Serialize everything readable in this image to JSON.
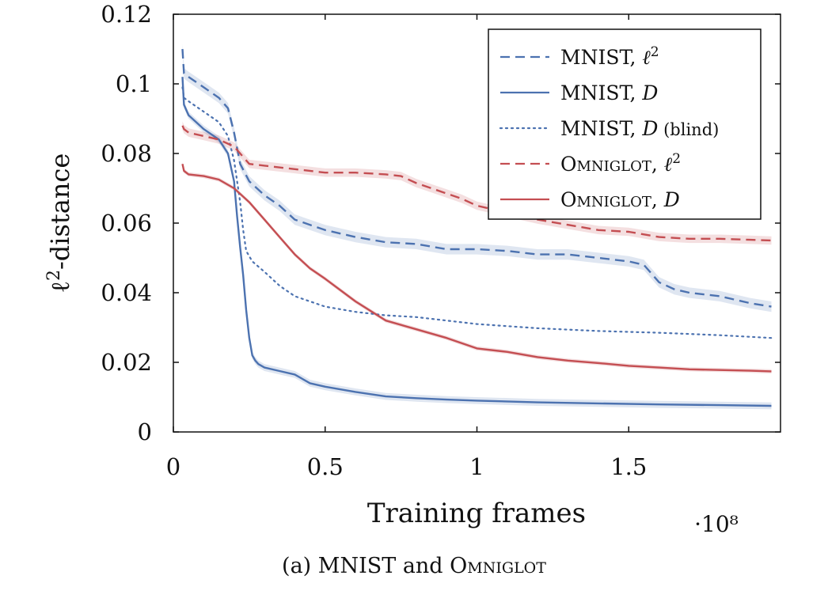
{
  "chart_data": {
    "type": "line",
    "title": "",
    "xlabel": "Training frames",
    "x_multiplier": "·10⁸",
    "ylabel": "ℓ²-distance",
    "xlim": [
      0,
      2.0
    ],
    "ylim": [
      0,
      0.12
    ],
    "xticks": [
      "0",
      "0.5",
      "1",
      "1.5"
    ],
    "xtick_values": [
      0,
      0.5,
      1,
      1.5
    ],
    "yticks": [
      "0",
      "0.02",
      "0.04",
      "0.06",
      "0.08",
      "0.1",
      "0.12"
    ],
    "ytick_values": [
      0,
      0.02,
      0.04,
      0.06,
      0.08,
      0.1,
      0.12
    ],
    "grid": false,
    "legend_position": "top-right",
    "series": [
      {
        "name": "MNIST, ℓ²",
        "color": "#4c72b0",
        "style": "dashed",
        "x": [
          0.03,
          0.035,
          0.05,
          0.1,
          0.15,
          0.18,
          0.2,
          0.22,
          0.25,
          0.3,
          0.35,
          0.4,
          0.5,
          0.6,
          0.7,
          0.8,
          0.9,
          1.0,
          1.1,
          1.2,
          1.3,
          1.4,
          1.5,
          1.55,
          1.6,
          1.65,
          1.7,
          1.8,
          1.9,
          1.97
        ],
        "y": [
          0.11,
          0.103,
          0.102,
          0.099,
          0.096,
          0.093,
          0.086,
          0.077,
          0.072,
          0.068,
          0.065,
          0.061,
          0.058,
          0.056,
          0.0545,
          0.054,
          0.0525,
          0.0525,
          0.052,
          0.051,
          0.051,
          0.05,
          0.049,
          0.048,
          0.043,
          0.041,
          0.04,
          0.039,
          0.037,
          0.036
        ],
        "band": 0.0015
      },
      {
        "name": "MNIST, D",
        "color": "#4c72b0",
        "style": "solid",
        "x": [
          0.03,
          0.035,
          0.05,
          0.1,
          0.15,
          0.18,
          0.2,
          0.21,
          0.22,
          0.23,
          0.24,
          0.25,
          0.26,
          0.27,
          0.28,
          0.3,
          0.35,
          0.4,
          0.45,
          0.5,
          0.6,
          0.7,
          0.8,
          0.9,
          1.0,
          1.2,
          1.4,
          1.6,
          1.8,
          1.97
        ],
        "y": [
          0.102,
          0.094,
          0.091,
          0.087,
          0.084,
          0.08,
          0.072,
          0.062,
          0.053,
          0.045,
          0.035,
          0.027,
          0.022,
          0.0205,
          0.0195,
          0.0185,
          0.0175,
          0.0165,
          0.014,
          0.013,
          0.0115,
          0.0102,
          0.0097,
          0.0093,
          0.009,
          0.0085,
          0.0082,
          0.0079,
          0.0077,
          0.0075
        ],
        "band": 0.001
      },
      {
        "name": "MNIST, D (blind)",
        "color": "#4c72b0",
        "style": "dotted",
        "x": [
          0.03,
          0.035,
          0.05,
          0.1,
          0.15,
          0.18,
          0.2,
          0.22,
          0.23,
          0.24,
          0.26,
          0.3,
          0.35,
          0.4,
          0.45,
          0.5,
          0.6,
          0.7,
          0.8,
          0.9,
          1.0,
          1.2,
          1.4,
          1.6,
          1.8,
          1.97
        ],
        "y": [
          0.099,
          0.096,
          0.095,
          0.092,
          0.089,
          0.085,
          0.078,
          0.066,
          0.058,
          0.052,
          0.049,
          0.046,
          0.042,
          0.039,
          0.0375,
          0.036,
          0.0345,
          0.0335,
          0.033,
          0.032,
          0.031,
          0.0298,
          0.029,
          0.0285,
          0.0278,
          0.027
        ],
        "band": 0
      },
      {
        "name": "OMNIGLOT, ℓ²",
        "color": "#c44e52",
        "style": "dashed",
        "x": [
          0.03,
          0.035,
          0.05,
          0.1,
          0.15,
          0.2,
          0.25,
          0.3,
          0.4,
          0.5,
          0.6,
          0.7,
          0.75,
          0.8,
          0.85,
          0.9,
          0.95,
          1.0,
          1.1,
          1.2,
          1.3,
          1.4,
          1.5,
          1.6,
          1.7,
          1.8,
          1.9,
          1.97
        ],
        "y": [
          0.088,
          0.087,
          0.086,
          0.085,
          0.084,
          0.082,
          0.077,
          0.0765,
          0.0755,
          0.0745,
          0.0745,
          0.074,
          0.0735,
          0.0715,
          0.07,
          0.0685,
          0.067,
          0.065,
          0.063,
          0.061,
          0.0595,
          0.058,
          0.0575,
          0.056,
          0.0555,
          0.0555,
          0.0552,
          0.055
        ],
        "band": 0.0012
      },
      {
        "name": "OMNIGLOT, D",
        "color": "#c44e52",
        "style": "solid",
        "x": [
          0.03,
          0.035,
          0.05,
          0.1,
          0.15,
          0.2,
          0.25,
          0.3,
          0.35,
          0.4,
          0.45,
          0.5,
          0.6,
          0.7,
          0.8,
          0.9,
          1.0,
          1.1,
          1.2,
          1.3,
          1.4,
          1.5,
          1.6,
          1.7,
          1.8,
          1.9,
          1.97
        ],
        "y": [
          0.077,
          0.075,
          0.074,
          0.0735,
          0.0725,
          0.07,
          0.066,
          0.061,
          0.056,
          0.051,
          0.047,
          0.044,
          0.0375,
          0.032,
          0.0295,
          0.027,
          0.024,
          0.023,
          0.0215,
          0.0205,
          0.0198,
          0.019,
          0.0185,
          0.018,
          0.0178,
          0.0176,
          0.0174
        ],
        "band": 0.0006
      }
    ]
  },
  "legend": {
    "items": [
      {
        "prefix": "MNIST, ",
        "suffix": "ℓ",
        "sup": "2",
        "tail": ""
      },
      {
        "prefix": "MNIST, ",
        "suffix": "D",
        "sup": "",
        "tail": ""
      },
      {
        "prefix": "MNIST, ",
        "suffix": "D",
        "sup": "",
        "tail": " (blind)"
      },
      {
        "prefix": "Omniglot, ",
        "suffix": "ℓ",
        "sup": "2",
        "tail": ""
      },
      {
        "prefix": "Omniglot, ",
        "suffix": "D",
        "sup": "",
        "tail": ""
      }
    ]
  },
  "caption": {
    "prefix": "(a) MNIST and ",
    "dataset": "Omniglot"
  }
}
